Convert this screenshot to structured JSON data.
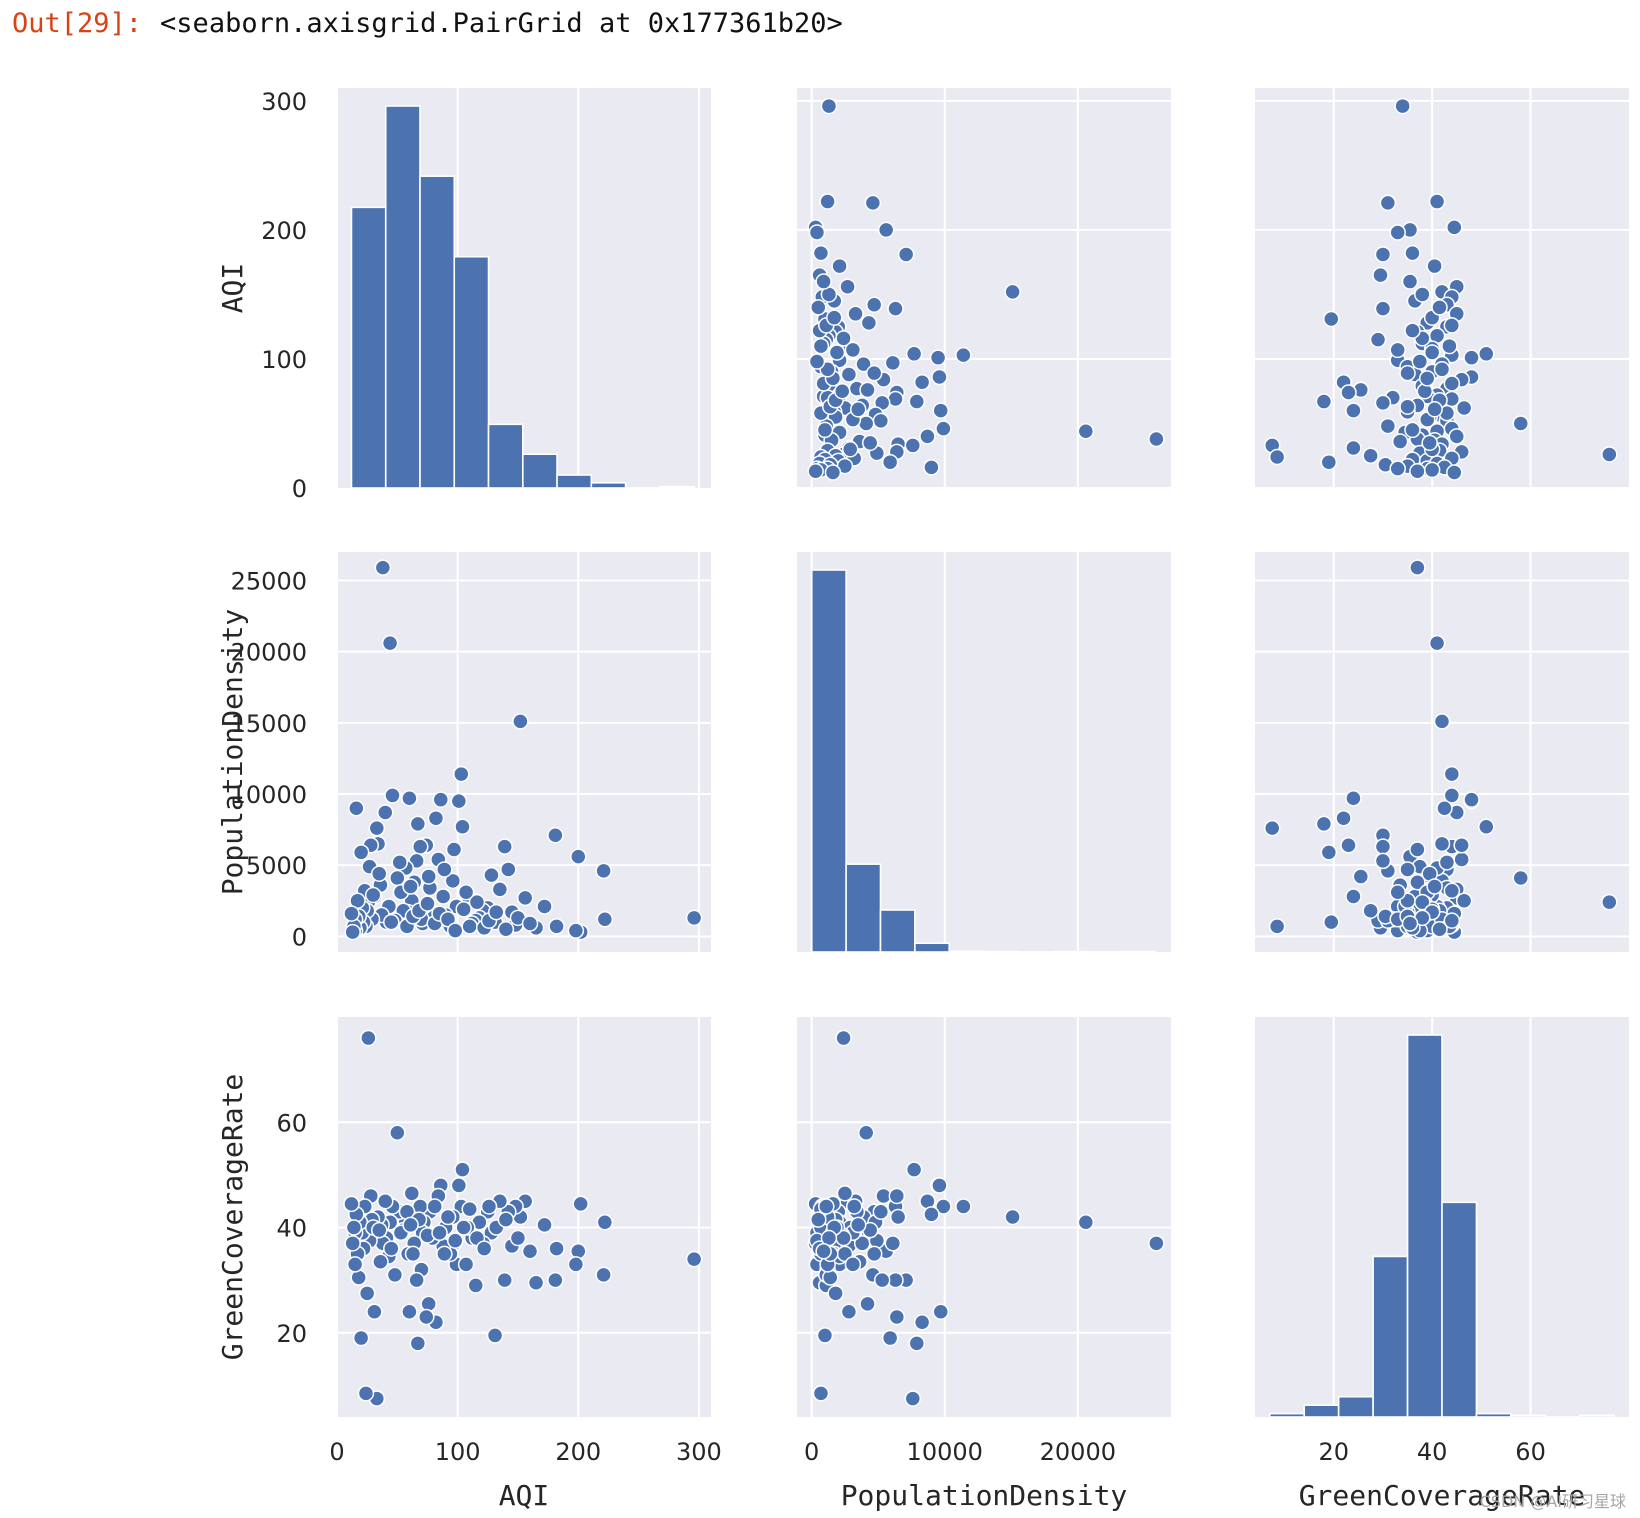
{
  "output": {
    "prompt": "Out[29]:",
    "text": "<seaborn.axisgrid.PairGrid at 0x177361b20>"
  },
  "watermark": "CSDN @AI研习星球",
  "colors": {
    "facecolor": "#eaeaf2",
    "grid": "#ffffff",
    "marker": "#4c72b0",
    "text": "#262626",
    "prompt": "#d84315"
  },
  "chart_data": {
    "type": "pairgrid",
    "variables": [
      "AQI",
      "PopulationDensity",
      "GreenCoverageRate"
    ],
    "axes": {
      "AQI": {
        "range": [
          0,
          310
        ],
        "ticks": [
          "0",
          "100",
          "200",
          "300"
        ],
        "tick_values": [
          0,
          100,
          200,
          300
        ]
      },
      "PopulationDensity": {
        "range": [
          -1100,
          27000
        ],
        "ticks": [
          "0",
          "5000",
          "10000",
          "15000",
          "20000",
          "25000"
        ],
        "tick_values": [
          0,
          5000,
          10000,
          15000,
          20000,
          25000
        ],
        "x_ticks": [
          "0",
          "10000",
          "20000"
        ],
        "x_tick_values": [
          0,
          10000,
          20000
        ]
      },
      "GreenCoverageRate": {
        "range": [
          4,
          80
        ],
        "ticks": [
          "20",
          "40",
          "60"
        ],
        "tick_values": [
          20,
          40,
          60
        ]
      }
    },
    "histograms": {
      "AQI": {
        "bin_edges": [
          12,
          40.4,
          68.8,
          97.2,
          125.6,
          154,
          182.4,
          210.8,
          239.2,
          267.6,
          296
        ],
        "counts": [
          216,
          294,
          240,
          178,
          49,
          26,
          10,
          4,
          0,
          1
        ]
      },
      "PopulationDensity": {
        "bin_edges": [
          10,
          2592,
          5174,
          7756,
          10338,
          12920,
          15502,
          18084,
          20666,
          23248,
          25830
        ],
        "counts": [
          1000,
          230,
          110,
          23,
          2,
          1,
          0,
          1,
          0,
          1
        ]
      },
      "GreenCoverageRate": {
        "bin_edges": [
          7,
          14,
          21,
          28,
          35,
          42,
          49,
          56,
          63,
          70,
          77
        ],
        "counts": [
          2,
          7,
          12,
          95,
          226,
          127,
          2,
          1,
          0,
          1
        ]
      }
    },
    "points": [
      [
        296,
        1300,
        34
      ],
      [
        222,
        1200,
        41
      ],
      [
        221,
        4600,
        31
      ],
      [
        202,
        300,
        44.5
      ],
      [
        200,
        5600,
        35.5
      ],
      [
        198,
        400,
        33
      ],
      [
        182,
        700,
        36
      ],
      [
        181,
        7100,
        30
      ],
      [
        172,
        2100,
        40.5
      ],
      [
        165,
        600,
        29.5
      ],
      [
        156,
        2700,
        45
      ],
      [
        152,
        15100,
        42
      ],
      [
        148,
        800,
        44
      ],
      [
        145,
        1700,
        36.5
      ],
      [
        142,
        4700,
        43
      ],
      [
        139,
        6300,
        30
      ],
      [
        135,
        3300,
        45
      ],
      [
        131,
        1000,
        19.5
      ],
      [
        128,
        4300,
        39
      ],
      [
        125,
        2000,
        43
      ],
      [
        121,
        1800,
        37
      ],
      [
        118,
        1300,
        41
      ],
      [
        115,
        1100,
        29
      ],
      [
        112,
        900,
        38
      ],
      [
        108,
        2900,
        40
      ],
      [
        104,
        7700,
        51
      ],
      [
        103,
        11400,
        44
      ],
      [
        101,
        9500,
        48
      ],
      [
        99,
        2100,
        33
      ],
      [
        97,
        6100,
        37
      ],
      [
        96,
        3900,
        42
      ],
      [
        94,
        700,
        35
      ],
      [
        90,
        1500,
        40
      ],
      [
        88,
        2800,
        36.5
      ],
      [
        86,
        9600,
        48
      ],
      [
        84,
        5400,
        46
      ],
      [
        82,
        8300,
        22
      ],
      [
        79,
        1300,
        38
      ],
      [
        77,
        3400,
        43
      ],
      [
        76,
        4200,
        25.5
      ],
      [
        74,
        6400,
        23
      ],
      [
        72,
        2100,
        41
      ],
      [
        71,
        900,
        39
      ],
      [
        70,
        1200,
        32
      ],
      [
        69,
        6300,
        44
      ],
      [
        67,
        7900,
        18
      ],
      [
        66,
        5300,
        30
      ],
      [
        64,
        3800,
        37
      ],
      [
        62,
        2500,
        46.5
      ],
      [
        60,
        9700,
        24
      ],
      [
        59,
        1700,
        35
      ],
      [
        57,
        4800,
        41
      ],
      [
        55,
        1800,
        39.5
      ],
      [
        52,
        5200,
        43
      ],
      [
        50,
        4100,
        58
      ],
      [
        48,
        1100,
        31
      ],
      [
        46,
        9900,
        44
      ],
      [
        44,
        20600,
        41
      ],
      [
        43,
        2100,
        34.5
      ],
      [
        41,
        1000,
        38
      ],
      [
        40,
        8700,
        45
      ],
      [
        38,
        25900,
        37
      ],
      [
        37,
        1500,
        40.5
      ],
      [
        36,
        3600,
        33.5
      ],
      [
        34,
        6500,
        42
      ],
      [
        33,
        7600,
        7.5
      ],
      [
        31,
        2800,
        24
      ],
      [
        29,
        1200,
        41.5
      ],
      [
        28,
        6400,
        46
      ],
      [
        27,
        4900,
        37.5
      ],
      [
        26,
        2400,
        76
      ],
      [
        25,
        1800,
        27.5
      ],
      [
        24,
        700,
        8.5
      ],
      [
        23,
        3200,
        44
      ],
      [
        22,
        1000,
        36
      ],
      [
        21,
        2000,
        39
      ],
      [
        20,
        5900,
        19
      ],
      [
        19,
        600,
        41
      ],
      [
        18,
        1400,
        30.5
      ],
      [
        17,
        2500,
        35
      ],
      [
        16,
        9000,
        42.5
      ],
      [
        15,
        400,
        39
      ],
      [
        15,
        1200,
        33
      ],
      [
        14,
        700,
        40
      ],
      [
        13,
        300,
        37
      ],
      [
        12,
        1600,
        44.5
      ],
      [
        30,
        2900,
        40
      ],
      [
        45,
        1000,
        36
      ],
      [
        53,
        3100,
        39
      ],
      [
        58,
        700,
        43
      ],
      [
        63,
        1400,
        35
      ],
      [
        68,
        1800,
        41.5
      ],
      [
        75,
        2300,
        38.5
      ],
      [
        81,
        900,
        44
      ],
      [
        85,
        1600,
        39
      ],
      [
        92,
        1200,
        42
      ],
      [
        98,
        400,
        37.5
      ],
      [
        105,
        1900,
        40
      ],
      [
        110,
        700,
        43.5
      ],
      [
        116,
        2400,
        38
      ],
      [
        122,
        600,
        36
      ],
      [
        126,
        1100,
        44
      ],
      [
        132,
        1700,
        40
      ],
      [
        140,
        500,
        41.5
      ],
      [
        150,
        1300,
        38
      ],
      [
        160,
        900,
        35.5
      ],
      [
        35,
        4400,
        39.5
      ],
      [
        61,
        3500,
        40.5
      ],
      [
        89,
        4700,
        35
      ],
      [
        107,
        3100,
        33
      ]
    ]
  }
}
